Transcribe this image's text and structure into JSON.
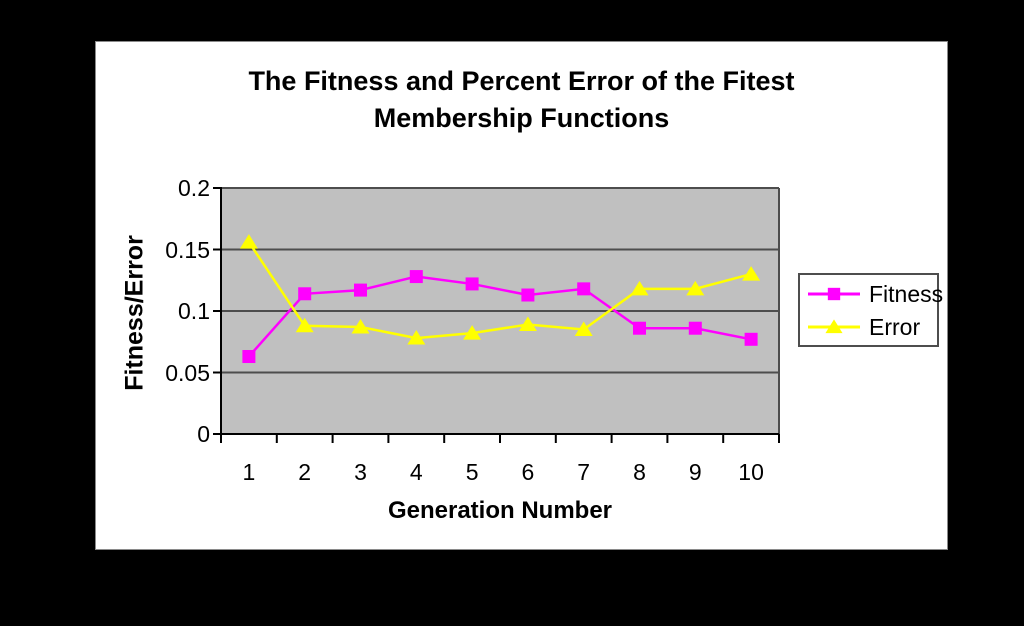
{
  "window": {
    "outer_bg": "#000000",
    "chart_bg": "#FFFFFF"
  },
  "chart_data": {
    "type": "line",
    "title": "The Fitness and Percent Error of the Fitest Membership Functions",
    "title_lines": [
      "The Fitness and Percent Error of the Fitest",
      "Membership Functions"
    ],
    "xlabel": "Generation Number",
    "ylabel": "Fitness/Error",
    "categories": [
      "1",
      "2",
      "3",
      "4",
      "5",
      "6",
      "7",
      "8",
      "9",
      "10"
    ],
    "ylim": [
      0,
      0.2
    ],
    "ytick_step": 0.05,
    "ytick_labels": [
      "0",
      "0.05",
      "0.1",
      "0.15",
      "0.2"
    ],
    "grid": true,
    "legend_position": "right",
    "plot_bg_color": "#C0C0C0",
    "gridline_color": "#4D4D4D",
    "axis_color": "#000000",
    "series": [
      {
        "name": "Fitness",
        "color": "#FF00FF",
        "marker": "square",
        "values": [
          0.063,
          0.114,
          0.117,
          0.128,
          0.122,
          0.113,
          0.118,
          0.086,
          0.086,
          0.077
        ]
      },
      {
        "name": "Error",
        "color": "#FFFF00",
        "marker": "triangle",
        "values": [
          0.156,
          0.088,
          0.087,
          0.078,
          0.082,
          0.089,
          0.085,
          0.118,
          0.118,
          0.13
        ]
      }
    ]
  }
}
